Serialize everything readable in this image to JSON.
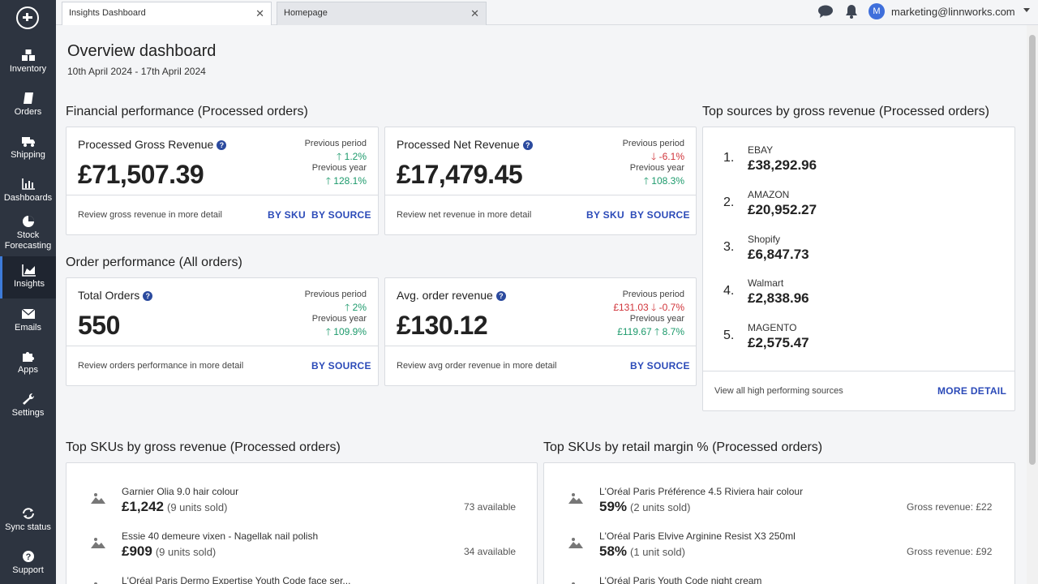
{
  "sidebar": {
    "items": [
      {
        "label": "Inventory",
        "icon": "boxes-icon"
      },
      {
        "label": "Orders",
        "icon": "book-icon"
      },
      {
        "label": "Shipping",
        "icon": "truck-icon"
      },
      {
        "label": "Dashboards",
        "icon": "bar-chart-icon"
      },
      {
        "label": "Stock Forecasting",
        "icon": "pie-chart-icon"
      },
      {
        "label": "Insights",
        "icon": "area-chart-icon"
      },
      {
        "label": "Emails",
        "icon": "envelope-icon"
      },
      {
        "label": "Apps",
        "icon": "puzzle-icon"
      },
      {
        "label": "Settings",
        "icon": "wrench-icon"
      },
      {
        "label": "Sync status",
        "icon": "sync-icon"
      },
      {
        "label": "Support",
        "icon": "question-icon"
      }
    ]
  },
  "tabs": [
    {
      "label": "Insights Dashboard",
      "active": true
    },
    {
      "label": "Homepage",
      "active": false
    }
  ],
  "header": {
    "user_initial": "M",
    "user_email": "marketing@linnworks.com"
  },
  "page": {
    "title": "Overview dashboard",
    "date_range": "10th April 2024 - 17th April 2024"
  },
  "financial": {
    "section_title": "Financial performance (Processed orders)",
    "gross": {
      "title": "Processed Gross Revenue",
      "value": "£71,507.39",
      "prev_period_label": "Previous period",
      "prev_period_value": "1.2%",
      "prev_year_label": "Previous year",
      "prev_year_value": "128.1%",
      "review": "Review gross revenue in more detail",
      "link_sku": "BY SKU",
      "link_source": "BY SOURCE"
    },
    "net": {
      "title": "Processed Net Revenue",
      "value": "£17,479.45",
      "prev_period_label": "Previous period",
      "prev_period_value": "-6.1%",
      "prev_year_label": "Previous year",
      "prev_year_value": "108.3%",
      "review": "Review net revenue in more detail",
      "link_sku": "BY SKU",
      "link_source": "BY SOURCE"
    }
  },
  "orders": {
    "section_title": "Order performance (All orders)",
    "total": {
      "title": "Total Orders",
      "value": "550",
      "prev_period_label": "Previous period",
      "prev_period_value": "2%",
      "prev_year_label": "Previous year",
      "prev_year_value": "109.9%",
      "review": "Review orders performance in more detail",
      "link_source": "BY SOURCE"
    },
    "avg": {
      "title": "Avg. order revenue",
      "value": "£130.12",
      "prev_period_label": "Previous period",
      "prev_period_amount": "£131.03",
      "prev_period_value": "-0.7%",
      "prev_year_label": "Previous year",
      "prev_year_amount": "£119.67",
      "prev_year_value": "8.7%",
      "review": "Review avg order revenue in more detail",
      "link_source": "BY SOURCE"
    }
  },
  "sources": {
    "section_title": "Top sources by gross revenue (Processed orders)",
    "items": [
      {
        "rank": "1.",
        "name": "EBAY",
        "value": "£38,292.96"
      },
      {
        "rank": "2.",
        "name": "AMAZON",
        "value": "£20,952.27"
      },
      {
        "rank": "3.",
        "name": "Shopify",
        "value": "£6,847.73"
      },
      {
        "rank": "4.",
        "name": "Walmart",
        "value": "£2,838.96"
      },
      {
        "rank": "5.",
        "name": "MAGENTO",
        "value": "£2,575.47"
      }
    ],
    "footer_text": "View all high performing sources",
    "footer_link": "MORE DETAIL"
  },
  "top_skus_revenue": {
    "section_title": "Top SKUs by gross revenue (Processed orders)",
    "items": [
      {
        "name": "Garnier Olia 9.0 hair colour",
        "value": "£1,242",
        "units": "(9 units sold)",
        "right": "73 available"
      },
      {
        "name": "Essie 40 demeure vixen - Nagellak nail polish",
        "value": "£909",
        "units": "(9 units sold)",
        "right": "34 available"
      },
      {
        "name": "L'Oréal Paris Dermo Expertise Youth Code face ser...",
        "value": "",
        "units": "",
        "right": ""
      }
    ]
  },
  "top_skus_margin": {
    "section_title": "Top SKUs by retail margin % (Processed orders)",
    "items": [
      {
        "name": "L'Oréal Paris Préférence 4.5 Riviera hair colour",
        "value": "59%",
        "units": "(2 units sold)",
        "right": "Gross revenue: £22"
      },
      {
        "name": "L'Oréal Paris Elvive Arginine Resist X3 250ml",
        "value": "58%",
        "units": "(1 unit sold)",
        "right": "Gross revenue: £92"
      },
      {
        "name": "L'Oréal Paris Youth Code night cream",
        "value": "",
        "units": "",
        "right": ""
      }
    ]
  },
  "colors": {
    "sidebar_bg": "#2d3440",
    "link_blue": "#2b4ab8",
    "positive_green": "#1d9a6c",
    "negative_red": "#d0343a",
    "avatar_blue": "#3f6fdb"
  }
}
